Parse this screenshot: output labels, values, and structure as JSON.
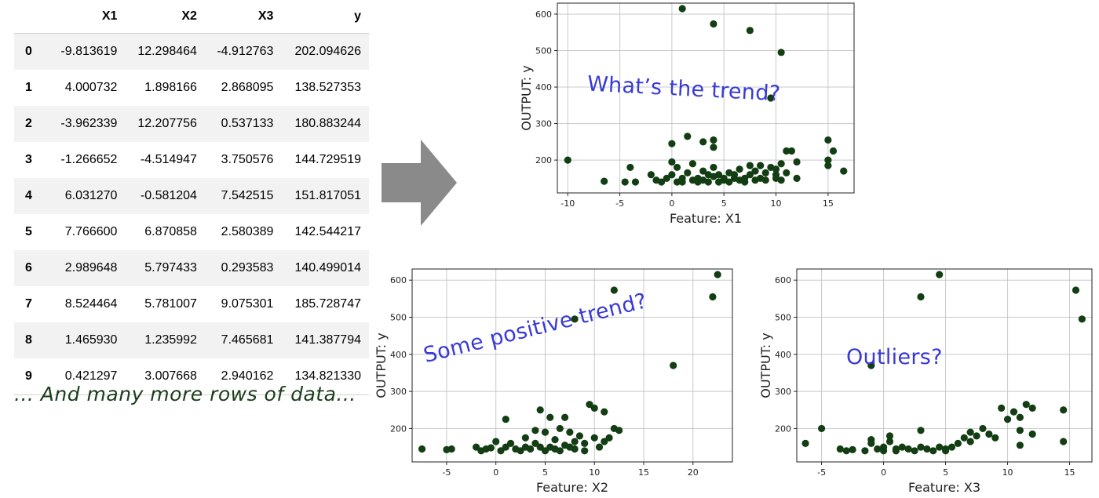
{
  "table": {
    "columns": [
      "X1",
      "X2",
      "X3",
      "y"
    ],
    "rows": [
      {
        "index": "0",
        "cells": [
          "-9.813619",
          "12.298464",
          "-4.912763",
          "202.094626"
        ]
      },
      {
        "index": "1",
        "cells": [
          "4.000732",
          "1.898166",
          "2.868095",
          "138.527353"
        ]
      },
      {
        "index": "2",
        "cells": [
          "-3.962339",
          "12.207756",
          "0.537133",
          "180.883244"
        ]
      },
      {
        "index": "3",
        "cells": [
          "-1.266652",
          "-4.514947",
          "3.750576",
          "144.729519"
        ]
      },
      {
        "index": "4",
        "cells": [
          "6.031270",
          "-0.581204",
          "7.542515",
          "151.817051"
        ]
      },
      {
        "index": "5",
        "cells": [
          "7.766600",
          "6.870858",
          "2.580389",
          "142.544217"
        ]
      },
      {
        "index": "6",
        "cells": [
          "2.989648",
          "5.797433",
          "0.293583",
          "140.499014"
        ]
      },
      {
        "index": "7",
        "cells": [
          "8.524464",
          "5.781007",
          "9.075301",
          "185.728747"
        ]
      },
      {
        "index": "8",
        "cells": [
          "1.465930",
          "1.235992",
          "7.465681",
          "141.387794"
        ]
      },
      {
        "index": "9",
        "cells": [
          "0.421297",
          "3.007668",
          "2.940162",
          "134.821330"
        ]
      }
    ]
  },
  "caption": "... And many more rows of data...",
  "colors": {
    "points": "#133d13",
    "annotation": "#3a3ad6",
    "arrow": "#8a8a8a",
    "grid": "#c8c8c8"
  },
  "chart_data": [
    {
      "type": "scatter",
      "xlabel": "Feature: X1",
      "ylabel": "OUTPUT: y",
      "annotation": "What’s the trend?",
      "xlim": [
        -11,
        17.5
      ],
      "ylim": [
        110,
        630
      ],
      "xticks": [
        -10,
        -5,
        0,
        5,
        10,
        15
      ],
      "yticks": [
        200,
        300,
        400,
        500,
        600
      ],
      "grid": true,
      "points": [
        [
          -10,
          200
        ],
        [
          -6.5,
          142
        ],
        [
          -4.5,
          140
        ],
        [
          -4,
          180
        ],
        [
          -3.5,
          140
        ],
        [
          -2,
          160
        ],
        [
          -1.5,
          145
        ],
        [
          -1,
          140
        ],
        [
          -0.5,
          150
        ],
        [
          0,
          160
        ],
        [
          0,
          195
        ],
        [
          0,
          245
        ],
        [
          0.5,
          140
        ],
        [
          0.5,
          180
        ],
        [
          1,
          150
        ],
        [
          1,
          140
        ],
        [
          1.5,
          265
        ],
        [
          1.5,
          165
        ],
        [
          2,
          145
        ],
        [
          2,
          190
        ],
        [
          2.5,
          150
        ],
        [
          2.5,
          140
        ],
        [
          3,
          250
        ],
        [
          3,
          170
        ],
        [
          3,
          145
        ],
        [
          3.5,
          160
        ],
        [
          3.5,
          140
        ],
        [
          4,
          235
        ],
        [
          4,
          180
        ],
        [
          4,
          155
        ],
        [
          4,
          255
        ],
        [
          4.5,
          140
        ],
        [
          4.5,
          160
        ],
        [
          5,
          145
        ],
        [
          5,
          150
        ],
        [
          5.5,
          165
        ],
        [
          5.5,
          140
        ],
        [
          6,
          150
        ],
        [
          6,
          160
        ],
        [
          6.5,
          145
        ],
        [
          6.5,
          175
        ],
        [
          7,
          150
        ],
        [
          7,
          140
        ],
        [
          7.5,
          185
        ],
        [
          7.5,
          160
        ],
        [
          8,
          145
        ],
        [
          8,
          170
        ],
        [
          8.5,
          150
        ],
        [
          8.5,
          185
        ],
        [
          9,
          145
        ],
        [
          9,
          165
        ],
        [
          9.5,
          180
        ],
        [
          9.5,
          370
        ],
        [
          10,
          150
        ],
        [
          10,
          160
        ],
        [
          10,
          175
        ],
        [
          10.5,
          190
        ],
        [
          10.5,
          145
        ],
        [
          11,
          225
        ],
        [
          11,
          165
        ],
        [
          11.5,
          225
        ],
        [
          12,
          150
        ],
        [
          12,
          195
        ],
        [
          15,
          255
        ],
        [
          15,
          200
        ],
        [
          15,
          185
        ],
        [
          15.5,
          225
        ],
        [
          16.5,
          170
        ],
        [
          1,
          615
        ],
        [
          4,
          573
        ],
        [
          7.5,
          555
        ],
        [
          10.5,
          495
        ]
      ]
    },
    {
      "type": "scatter",
      "xlabel": "Feature: X2",
      "ylabel": "OUTPUT: y",
      "annotation": "Some positive trend?",
      "xlim": [
        -8.5,
        24
      ],
      "ylim": [
        110,
        630
      ],
      "xticks": [
        -5,
        0,
        5,
        10,
        15,
        20
      ],
      "yticks": [
        200,
        300,
        400,
        500,
        600
      ],
      "grid": true,
      "points": [
        [
          -7.5,
          145
        ],
        [
          -5,
          143
        ],
        [
          -4.5,
          145
        ],
        [
          -2,
          150
        ],
        [
          -1.5,
          140
        ],
        [
          -1,
          145
        ],
        [
          -0.5,
          148
        ],
        [
          0,
          165
        ],
        [
          0.5,
          140
        ],
        [
          1,
          225
        ],
        [
          1,
          150
        ],
        [
          1.5,
          160
        ],
        [
          2,
          145
        ],
        [
          2.5,
          140
        ],
        [
          3,
          150
        ],
        [
          3,
          175
        ],
        [
          3.5,
          145
        ],
        [
          4,
          160
        ],
        [
          4,
          195
        ],
        [
          4.5,
          250
        ],
        [
          4.5,
          150
        ],
        [
          5,
          140
        ],
        [
          5,
          190
        ],
        [
          5.5,
          230
        ],
        [
          5.5,
          150
        ],
        [
          6,
          145
        ],
        [
          6,
          170
        ],
        [
          6.5,
          200
        ],
        [
          6.5,
          140
        ],
        [
          7,
          155
        ],
        [
          7,
          230
        ],
        [
          7.5,
          150
        ],
        [
          7.5,
          190
        ],
        [
          8,
          165
        ],
        [
          8,
          145
        ],
        [
          8.5,
          180
        ],
        [
          9,
          140
        ],
        [
          9,
          160
        ],
        [
          9.5,
          265
        ],
        [
          10,
          255
        ],
        [
          10,
          175
        ],
        [
          10.5,
          150
        ],
        [
          11,
          245
        ],
        [
          11,
          165
        ],
        [
          11.5,
          175
        ],
        [
          12,
          200
        ],
        [
          12.5,
          195
        ],
        [
          8,
          495
        ],
        [
          12,
          573
        ],
        [
          18,
          370
        ],
        [
          22,
          555
        ],
        [
          22.5,
          615
        ]
      ]
    },
    {
      "type": "scatter",
      "xlabel": "Feature: X3",
      "ylabel": "OUTPUT: y",
      "annotation": "Outliers?",
      "xlim": [
        -7,
        16.8
      ],
      "ylim": [
        110,
        630
      ],
      "xticks": [
        -5,
        0,
        5,
        10,
        15
      ],
      "yticks": [
        200,
        300,
        400,
        500,
        600
      ],
      "grid": true,
      "points": [
        [
          -6.3,
          160
        ],
        [
          -5,
          200
        ],
        [
          -3.5,
          145
        ],
        [
          -3,
          140
        ],
        [
          -2.5,
          143
        ],
        [
          -1.5,
          140
        ],
        [
          -1,
          170
        ],
        [
          -1,
          160
        ],
        [
          -0.5,
          145
        ],
        [
          0,
          140
        ],
        [
          0,
          150
        ],
        [
          0.5,
          165
        ],
        [
          0.5,
          180
        ],
        [
          1,
          145
        ],
        [
          1,
          140
        ],
        [
          1.5,
          150
        ],
        [
          2,
          145
        ],
        [
          2.5,
          140
        ],
        [
          3,
          195
        ],
        [
          3,
          150
        ],
        [
          3.5,
          145
        ],
        [
          4,
          140
        ],
        [
          4.5,
          150
        ],
        [
          5,
          140
        ],
        [
          5,
          145
        ],
        [
          5.5,
          150
        ],
        [
          6,
          160
        ],
        [
          6.5,
          175
        ],
        [
          7,
          190
        ],
        [
          7,
          165
        ],
        [
          7.5,
          180
        ],
        [
          8,
          200
        ],
        [
          8.5,
          185
        ],
        [
          9,
          175
        ],
        [
          9.5,
          255
        ],
        [
          10,
          225
        ],
        [
          10.5,
          245
        ],
        [
          11,
          230
        ],
        [
          11,
          195
        ],
        [
          11.5,
          265
        ],
        [
          12,
          255
        ],
        [
          11,
          155
        ],
        [
          12,
          185
        ],
        [
          14.5,
          250
        ],
        [
          14.5,
          165
        ],
        [
          -1,
          370
        ],
        [
          3,
          555
        ],
        [
          4.5,
          615
        ],
        [
          15.5,
          573
        ],
        [
          16,
          495
        ]
      ]
    }
  ]
}
